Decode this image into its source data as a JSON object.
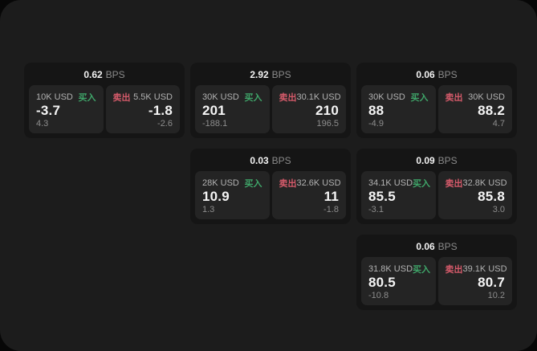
{
  "labels": {
    "bps_unit": "BPS",
    "buy": "买入",
    "sell": "卖出"
  },
  "colors": {
    "buy": "#3fa569",
    "sell": "#d45a6a",
    "window_bg": "#1c1c1c",
    "card_bg": "#151515",
    "panel_bg": "#242424"
  },
  "cards": [
    {
      "row": 1,
      "col": 1,
      "bps": "0.62",
      "buy": {
        "amount": "10K USD",
        "value": "-3.7",
        "sub": "4.3"
      },
      "sell": {
        "amount": "5.5K USD",
        "value": "-1.8",
        "sub": "-2.6"
      }
    },
    {
      "row": 1,
      "col": 2,
      "bps": "2.92",
      "buy": {
        "amount": "30K USD",
        "value": "201",
        "sub": "-188.1"
      },
      "sell": {
        "amount": "30.1K USD",
        "value": "210",
        "sub": "196.5"
      }
    },
    {
      "row": 1,
      "col": 3,
      "bps": "0.06",
      "buy": {
        "amount": "30K USD",
        "value": "88",
        "sub": "-4.9"
      },
      "sell": {
        "amount": "30K USD",
        "value": "88.2",
        "sub": "4.7"
      }
    },
    {
      "row": 2,
      "col": 2,
      "bps": "0.03",
      "buy": {
        "amount": "28K USD",
        "value": "10.9",
        "sub": "1.3"
      },
      "sell": {
        "amount": "32.6K USD",
        "value": "11",
        "sub": "-1.8"
      }
    },
    {
      "row": 2,
      "col": 3,
      "bps": "0.09",
      "buy": {
        "amount": "34.1K USD",
        "value": "85.5",
        "sub": "-3.1"
      },
      "sell": {
        "amount": "32.8K USD",
        "value": "85.8",
        "sub": "3.0"
      }
    },
    {
      "row": 3,
      "col": 3,
      "bps": "0.06",
      "buy": {
        "amount": "31.8K USD",
        "value": "80.5",
        "sub": "-10.8"
      },
      "sell": {
        "amount": "39.1K USD",
        "value": "80.7",
        "sub": "10.2"
      }
    }
  ]
}
